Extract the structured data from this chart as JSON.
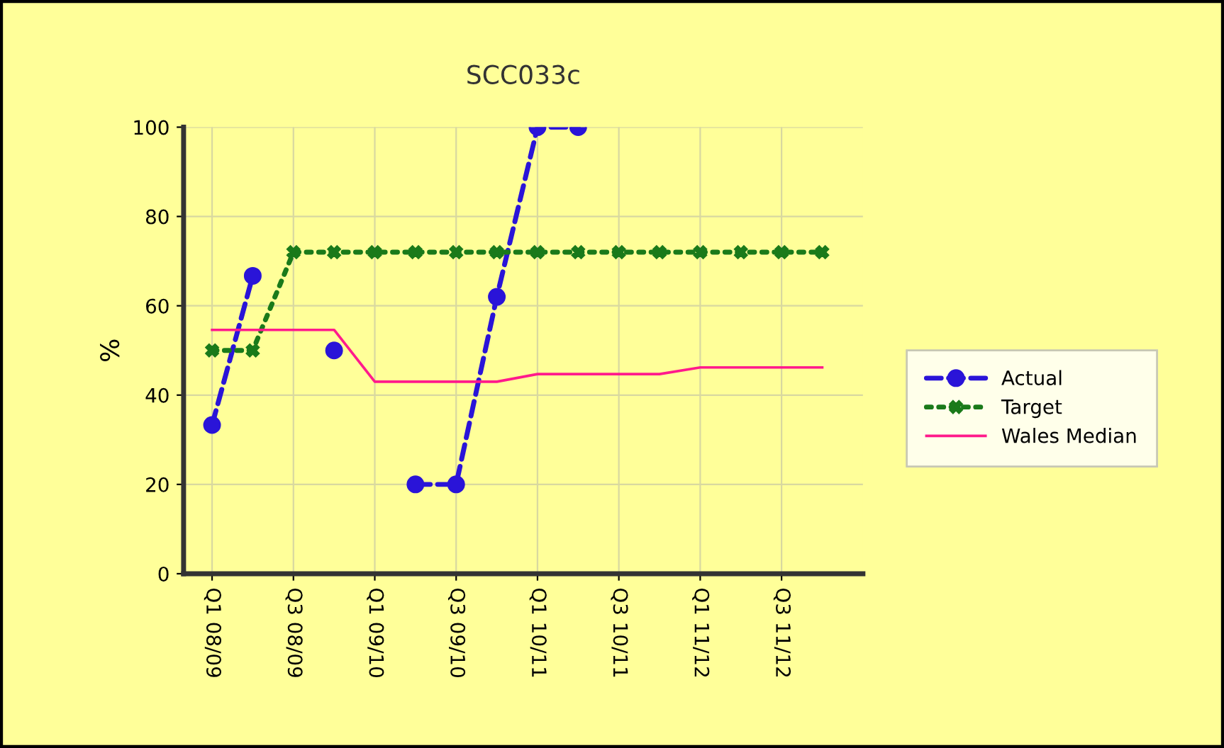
{
  "chart_data": {
    "type": "line",
    "title": "SCC033c",
    "ylabel": "%",
    "categories": [
      "Q1 08/09",
      null,
      "Q3 08/09",
      null,
      "Q1 09/10",
      null,
      "Q3 09/10",
      null,
      "Q1 10/11",
      null,
      "Q3 10/11",
      null,
      "Q1 11/12",
      null,
      "Q3 11/12",
      null
    ],
    "series": [
      {
        "name": "Actual",
        "color": "#2a14d8",
        "marker": "circle",
        "line_style": "dashed",
        "values": [
          33.3,
          66.7,
          null,
          50,
          null,
          20,
          20,
          62,
          100,
          100,
          null,
          null,
          null,
          null,
          null,
          null
        ]
      },
      {
        "name": "Target",
        "color": "#1a7a1a",
        "marker": "cross",
        "line_style": "dotted",
        "values": [
          50,
          50,
          72,
          72,
          72,
          72,
          72,
          72,
          72,
          72,
          72,
          72,
          72,
          72,
          72,
          72
        ]
      },
      {
        "name": "Wales Median",
        "color": "#ff1a8c",
        "marker": "none",
        "line_style": "solid",
        "values": [
          54.6,
          54.6,
          54.6,
          54.6,
          43,
          43,
          43,
          43,
          44.7,
          44.7,
          44.7,
          44.7,
          46.2,
          46.2,
          46.2,
          46.2
        ]
      }
    ],
    "ylim": [
      0,
      100
    ],
    "yticks": [
      0,
      20,
      40,
      60,
      80,
      100
    ],
    "grid": true,
    "legend": "right"
  }
}
